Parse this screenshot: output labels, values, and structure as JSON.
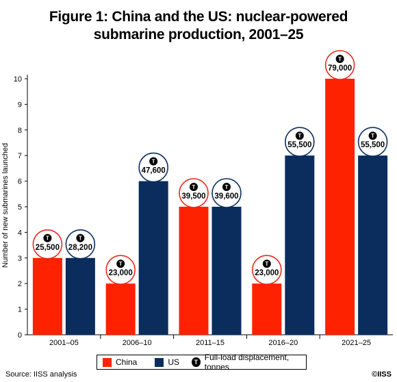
{
  "title_line1": "Figure 1: China and the US: nuclear-powered",
  "title_line2": "submarine production, 2001–25",
  "source": "Source: IISS analysis",
  "copyright": "©IISS",
  "legend": {
    "china": "China",
    "us": "US",
    "t_glyph": "T",
    "displacement": "Full-load displacement, tonnes"
  },
  "colors": {
    "china": "#ff2200",
    "us": "#0a2d5e",
    "badge_china_border": "#e8291c",
    "badge_us_border": "#0a2d5e"
  },
  "chart_data": {
    "type": "bar",
    "categories": [
      "2001–05",
      "2006–10",
      "2011–15",
      "2016–20",
      "2021–25"
    ],
    "ylabel": "Number of new submarines launched",
    "ylim": [
      0,
      10
    ],
    "yticks": [
      "0",
      "1",
      "2",
      "3",
      "4",
      "5",
      "6",
      "7",
      "8",
      "9",
      "10"
    ],
    "grid": false,
    "series": [
      {
        "name": "China",
        "values": [
          3,
          2,
          5,
          2,
          10
        ],
        "displacement_labels": [
          "25,500",
          "23,000",
          "39,500",
          "23,000",
          "79,000"
        ]
      },
      {
        "name": "US",
        "values": [
          3,
          6,
          5,
          7,
          7
        ],
        "displacement_labels": [
          "28,200",
          "47,600",
          "39,600",
          "55,500",
          "55,500"
        ]
      }
    ]
  }
}
